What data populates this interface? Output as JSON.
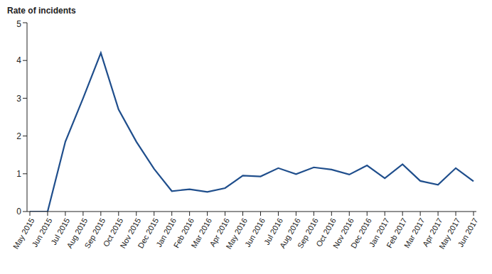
{
  "chart_data": {
    "type": "line",
    "y_label": "Rate of incidents",
    "categories": [
      "May 2015",
      "Jun 2015",
      "Jul 2015",
      "Aug 2015",
      "Sep 2015",
      "Oct 2015",
      "Nov 2015",
      "Dec 2015",
      "Jan 2016",
      "Feb 2016",
      "Mar 2016",
      "Apr 2016",
      "May 2016",
      "Jun 2016",
      "Jul 2016",
      "Aug 2016",
      "Sep 2016",
      "Oct 2016",
      "Nov 2016",
      "Dec 2016",
      "Jan 2017",
      "Feb 2017",
      "Mar 2017",
      "Apr 2017",
      "May 2017",
      "Jun 2017"
    ],
    "values": [
      0,
      0,
      1.85,
      3.0,
      4.2,
      2.7,
      1.85,
      1.13,
      0.54,
      0.59,
      0.52,
      0.62,
      0.95,
      0.93,
      1.15,
      0.99,
      1.17,
      1.11,
      0.98,
      1.22,
      0.88,
      1.25,
      0.81,
      0.71,
      1.15,
      0.8
    ],
    "color": "#1f4e8c",
    "ylim": [
      0,
      5
    ],
    "yticks": [
      0,
      1,
      2,
      3,
      4,
      5
    ],
    "grid": false
  }
}
